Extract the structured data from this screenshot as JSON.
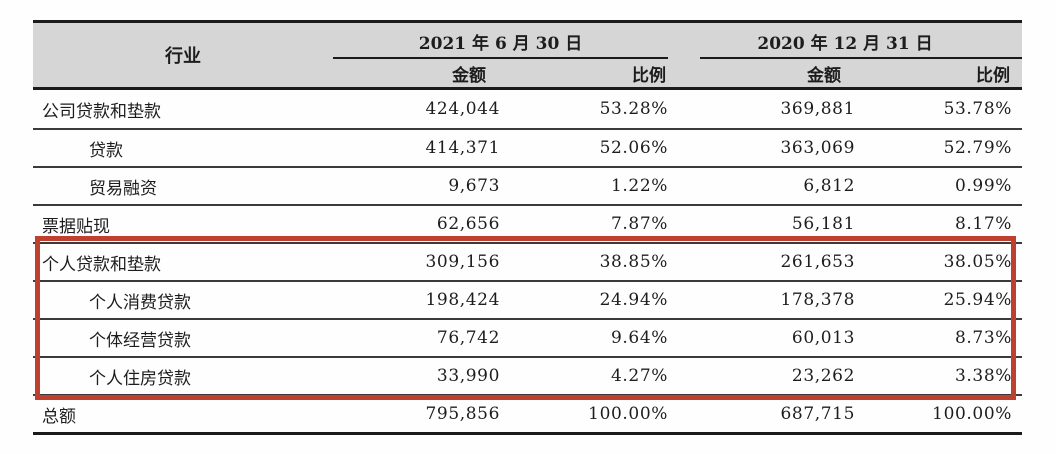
{
  "table": {
    "industry_header": "行业",
    "groups": [
      {
        "label": "2021 年 6 月 30 日",
        "amount_header": "金额",
        "ratio_header": "比例"
      },
      {
        "label": "2020 年 12 月 31 日",
        "amount_header": "金额",
        "ratio_header": "比例"
      }
    ],
    "rows": [
      {
        "industry": "公司贷款和垫款",
        "indent": false,
        "amount_2021": "424,044",
        "ratio_2021": "53.28%",
        "amount_2020": "369,881",
        "ratio_2020": "53.78%"
      },
      {
        "industry": "贷款",
        "indent": true,
        "amount_2021": "414,371",
        "ratio_2021": "52.06%",
        "amount_2020": "363,069",
        "ratio_2020": "52.79%"
      },
      {
        "industry": "贸易融资",
        "indent": true,
        "amount_2021": "9,673",
        "ratio_2021": "1.22%",
        "amount_2020": "6,812",
        "ratio_2020": "0.99%"
      },
      {
        "industry": "票据贴现",
        "indent": false,
        "amount_2021": "62,656",
        "ratio_2021": "7.87%",
        "amount_2020": "56,181",
        "ratio_2020": "8.17%"
      },
      {
        "industry": "个人贷款和垫款",
        "indent": false,
        "amount_2021": "309,156",
        "ratio_2021": "38.85%",
        "amount_2020": "261,653",
        "ratio_2020": "38.05%"
      },
      {
        "industry": "个人消费贷款",
        "indent": true,
        "amount_2021": "198,424",
        "ratio_2021": "24.94%",
        "amount_2020": "178,378",
        "ratio_2020": "25.94%"
      },
      {
        "industry": "个体经营贷款",
        "indent": true,
        "amount_2021": "76,742",
        "ratio_2021": "9.64%",
        "amount_2020": "60,013",
        "ratio_2020": "8.73%"
      },
      {
        "industry": "个人住房贷款",
        "indent": true,
        "amount_2021": "33,990",
        "ratio_2021": "4.27%",
        "amount_2020": "23,262",
        "ratio_2020": "3.38%"
      },
      {
        "industry": "总额",
        "indent": false,
        "amount_2021": "795,856",
        "ratio_2021": "100.00%",
        "amount_2020": "687,715",
        "ratio_2020": "100.00%"
      }
    ],
    "highlight": {
      "color": "#c0402f",
      "first_highlighted_row": "个人贷款和垫款",
      "last_highlighted_row": "个人住房贷款"
    },
    "header_bg": "#d6d6d6"
  }
}
